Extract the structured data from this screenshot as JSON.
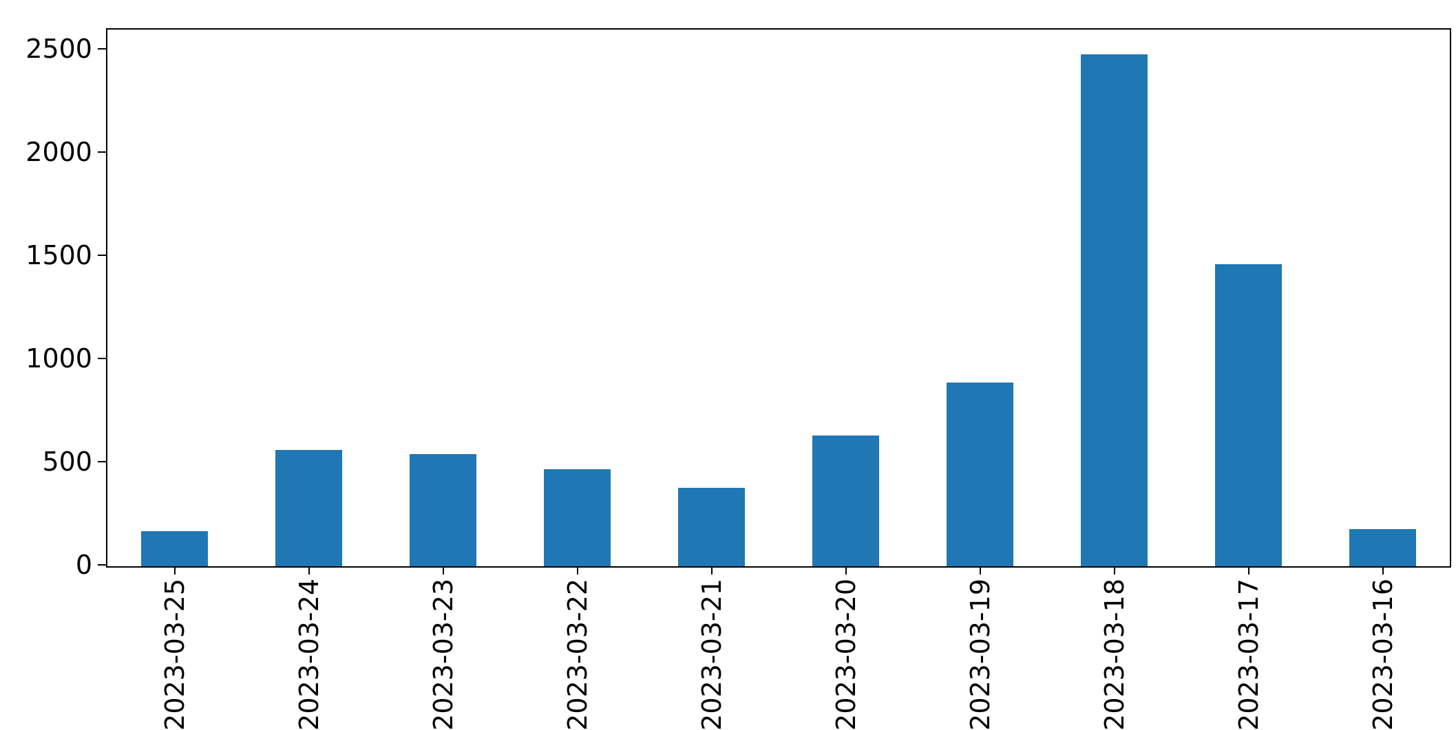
{
  "chart_data": {
    "type": "bar",
    "categories": [
      "2023-03-25",
      "2023-03-24",
      "2023-03-23",
      "2023-03-22",
      "2023-03-21",
      "2023-03-20",
      "2023-03-19",
      "2023-03-18",
      "2023-03-17",
      "2023-03-16"
    ],
    "values": [
      170,
      565,
      545,
      470,
      380,
      635,
      890,
      2480,
      1465,
      180
    ],
    "title": "",
    "xlabel": "",
    "ylabel": "",
    "ylim": [
      0,
      2600
    ],
    "yticks": [
      0,
      500,
      1000,
      1500,
      2000,
      2500
    ],
    "bar_color": "#1f77b4",
    "bar_width_fraction": 0.5,
    "grid": false,
    "legend_position": "none"
  }
}
